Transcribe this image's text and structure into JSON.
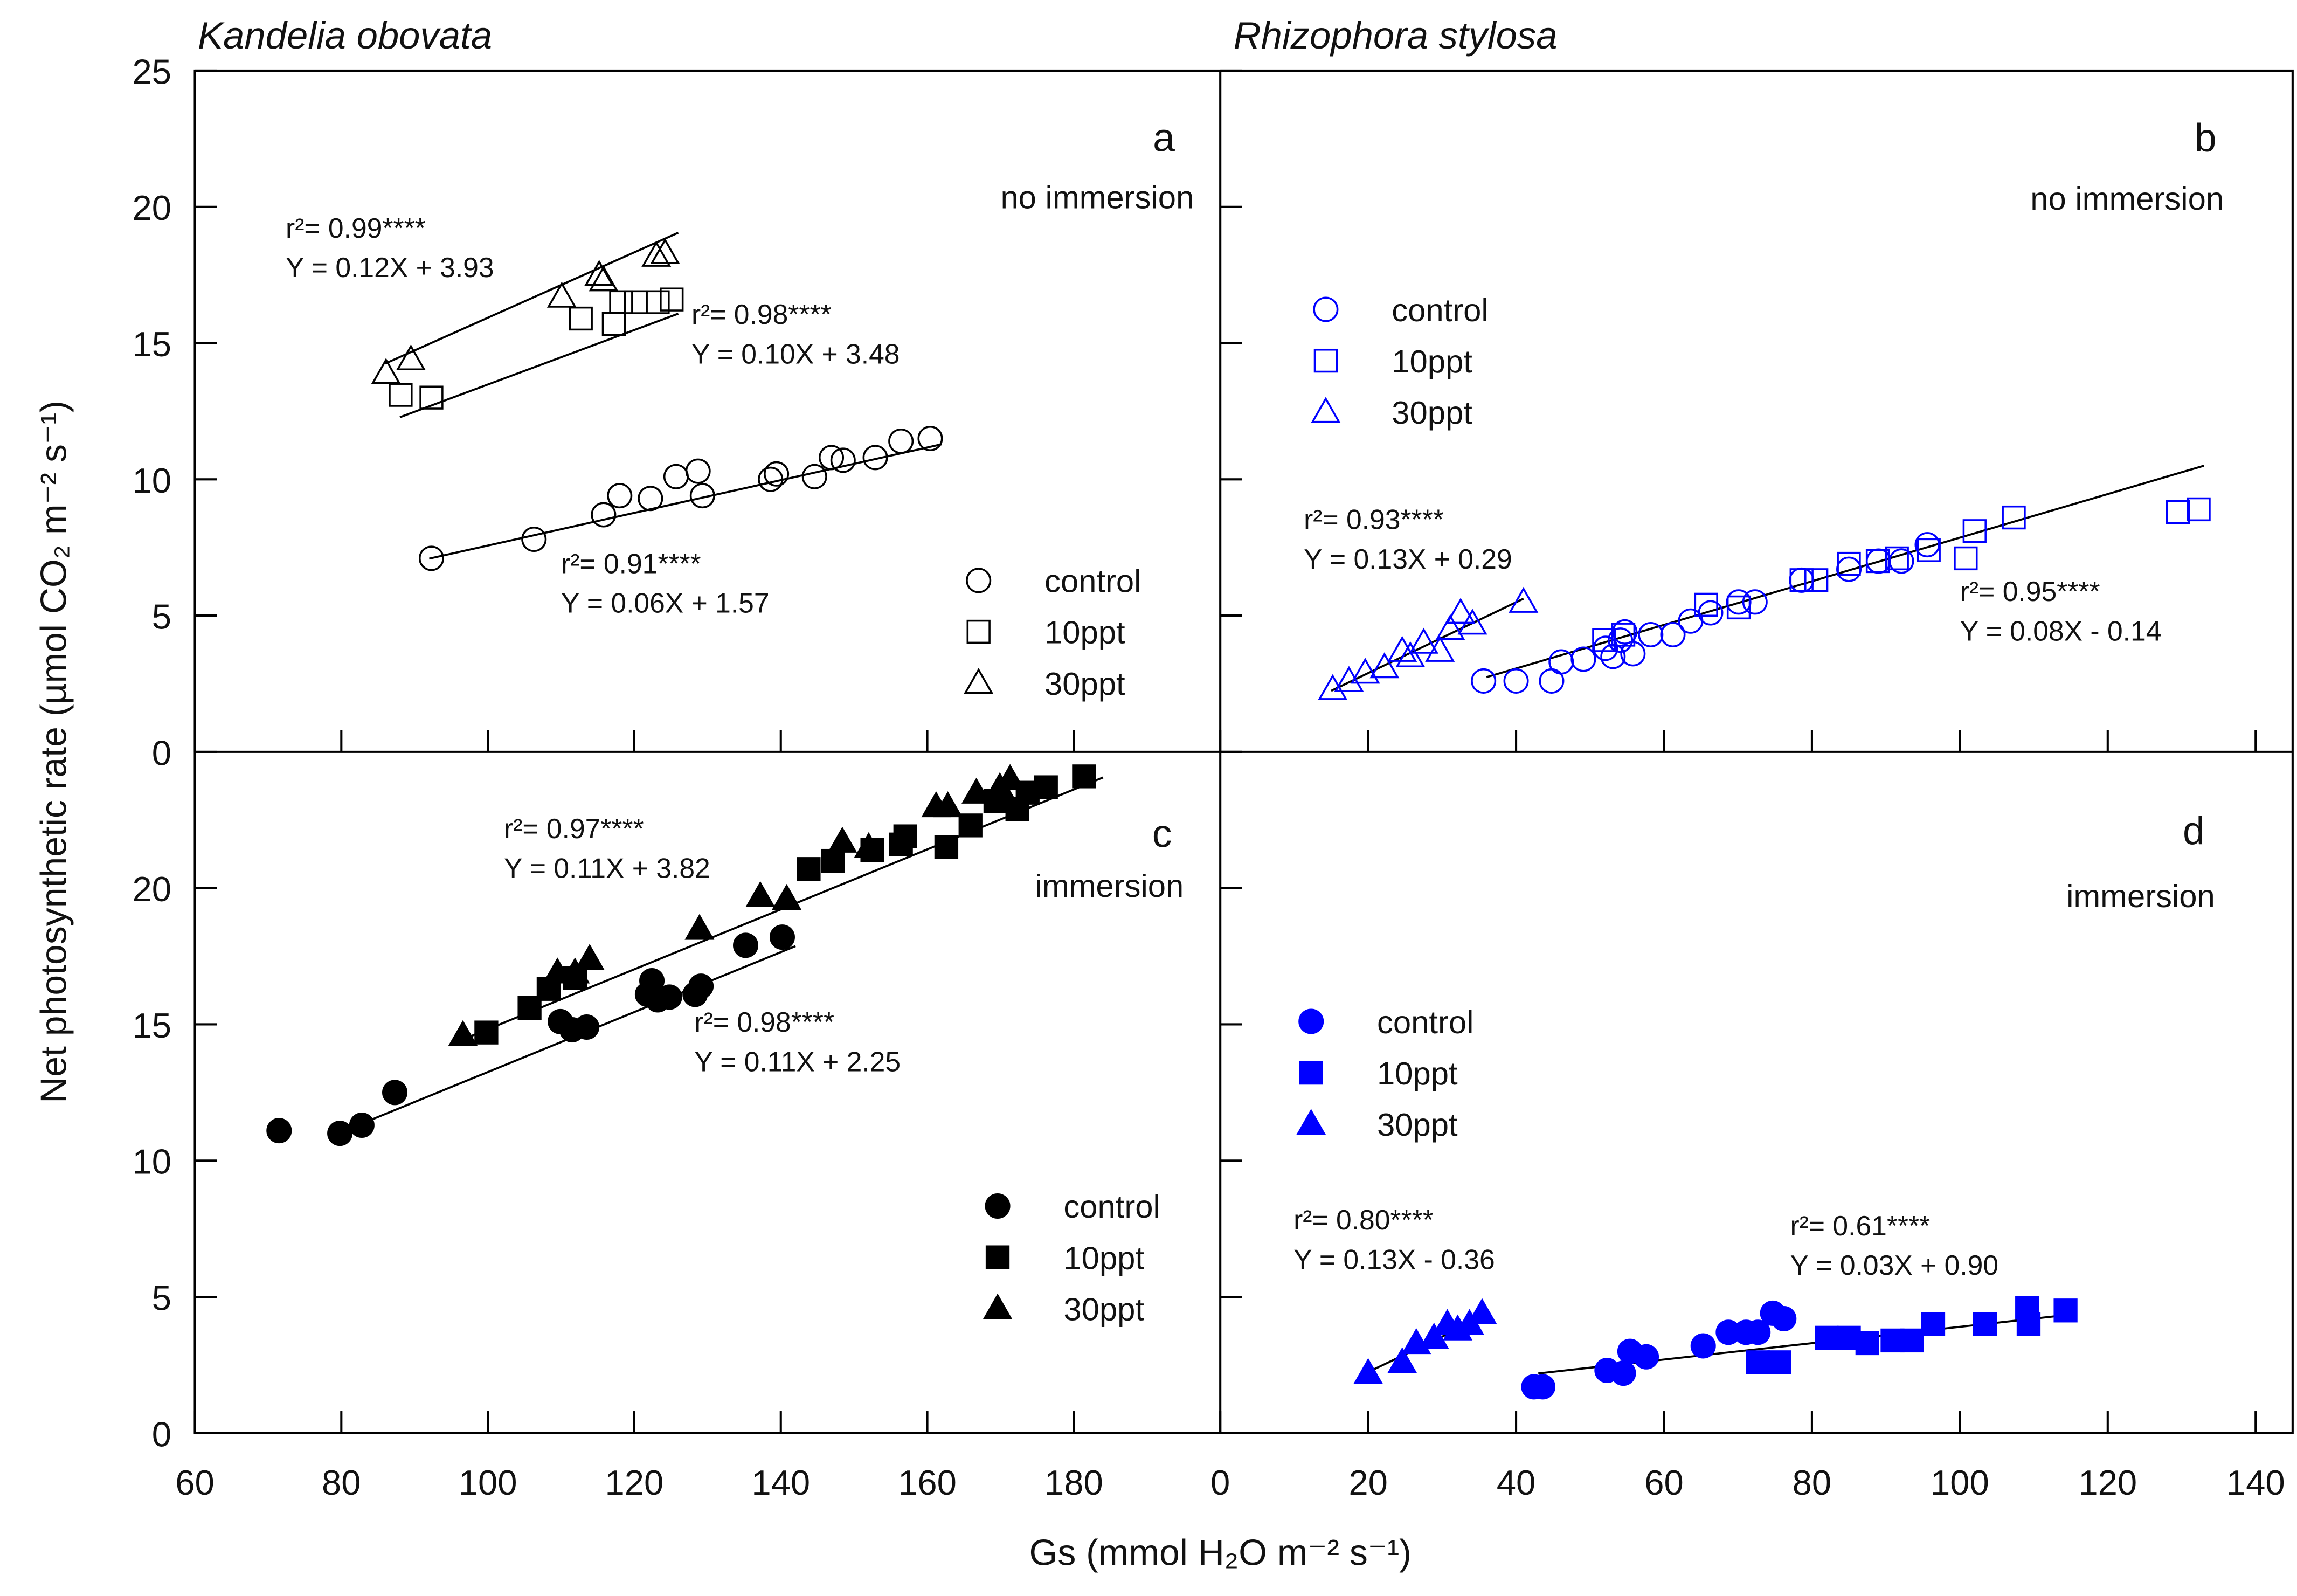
{
  "axis_labels": {
    "x": "Gs (mmol H₂O m⁻² s⁻¹)",
    "y": "Net photosynthetic rate (µmol CO₂ m⁻² s⁻¹)"
  },
  "chart_data": [
    {
      "type": "scatter",
      "title": "Kandelia obovata",
      "letter": "a",
      "subtitle": "no immersion",
      "xlim": [
        60,
        200
      ],
      "xticks": [
        60,
        80,
        100,
        120,
        140,
        160,
        180
      ],
      "ylim": [
        0,
        25
      ],
      "yticks": [
        0,
        5,
        10,
        15,
        20,
        25
      ],
      "show_xtick_labels": false,
      "show_ytick_labels": true,
      "series": [
        {
          "name": "control",
          "color": "#000000",
          "marker": "circle",
          "filled": false,
          "x": [
            92.3,
            106.3,
            115.8,
            118.0,
            122.2,
            125.7,
            128.7,
            129.3,
            138.6,
            139.4,
            144.6,
            146.9,
            148.5,
            152.9,
            156.4,
            160.4
          ],
          "values": [
            7.1,
            7.8,
            8.7,
            9.4,
            9.3,
            10.1,
            10.3,
            9.4,
            10.0,
            10.2,
            10.1,
            10.8,
            10.7,
            10.8,
            11.4,
            11.5
          ]
        },
        {
          "name": "10ppt",
          "color": "#000000",
          "marker": "square",
          "filled": false,
          "x": [
            88.1,
            92.3,
            112.7,
            117.2,
            118.2,
            120.2,
            123.2,
            125.1
          ],
          "values": [
            13.1,
            13.0,
            15.9,
            15.7,
            16.5,
            16.5,
            16.5,
            16.6
          ]
        },
        {
          "name": "30ppt",
          "color": "#000000",
          "marker": "triangle",
          "filled": false,
          "x": [
            86.1,
            89.5,
            110.1,
            115.2,
            115.8,
            123.0,
            124.2
          ],
          "values": [
            13.9,
            14.4,
            16.7,
            17.5,
            17.3,
            18.2,
            18.3
          ]
        }
      ],
      "fits": [
        {
          "r2_label": "r²= 0.99****",
          "equation": "Y = 0.12X + 3.93",
          "slope": 0.12,
          "intercept": 3.93,
          "xrange": [
            86,
            126
          ]
        },
        {
          "r2_label": "r²= 0.98****",
          "equation": "Y = 0.10X + 3.48",
          "slope": 0.1,
          "intercept": 3.48,
          "xrange": [
            88,
            126
          ]
        },
        {
          "r2_label": "r²= 0.91****",
          "equation": "Y = 0.06X + 1.57",
          "slope": 0.06,
          "intercept": 1.57,
          "xrange": [
            92,
            162
          ]
        }
      ]
    },
    {
      "type": "scatter",
      "title": "Rhizophora stylosa",
      "letter": "b",
      "subtitle": "no immersion",
      "xlim": [
        0,
        145
      ],
      "xticks": [
        0,
        20,
        40,
        60,
        80,
        100,
        120,
        140
      ],
      "ylim": [
        0,
        25
      ],
      "yticks": [
        0,
        5,
        10,
        15,
        20,
        25
      ],
      "show_xtick_labels": false,
      "show_ytick_labels": false,
      "series": [
        {
          "name": "control",
          "color": "#0000ff",
          "marker": "circle",
          "filled": false,
          "x": [
            35.6,
            40.0,
            44.8,
            46.1,
            49.1,
            52.1,
            53.1,
            54.1,
            54.7,
            55.8,
            58.2,
            61.2,
            63.6,
            66.3,
            70.1,
            72.3,
            78.6,
            85.0,
            89.0,
            92.1,
            95.6
          ],
          "values": [
            2.6,
            2.6,
            2.6,
            3.3,
            3.4,
            3.8,
            3.5,
            4.1,
            4.4,
            3.6,
            4.3,
            4.3,
            4.8,
            5.1,
            5.5,
            5.5,
            6.3,
            6.7,
            7.0,
            7.0,
            7.6
          ]
        },
        {
          "name": "10ppt",
          "color": "#0000ff",
          "marker": "square",
          "filled": false,
          "x": [
            51.9,
            54.5,
            65.7,
            70.1,
            78.6,
            80.6,
            85.0,
            88.9,
            91.5,
            95.8,
            100.8,
            102.0,
            107.3,
            129.5,
            132.3
          ],
          "values": [
            4.1,
            4.3,
            5.4,
            5.3,
            6.3,
            6.3,
            6.9,
            7.0,
            7.1,
            7.4,
            7.1,
            8.1,
            8.6,
            8.8,
            8.9
          ]
        },
        {
          "name": "30ppt",
          "color": "#0000ff",
          "marker": "triangle",
          "filled": false,
          "x": [
            15.2,
            17.4,
            19.6,
            22.2,
            24.6,
            25.7,
            27.5,
            29.7,
            31.1,
            32.5,
            34.1,
            41.0
          ],
          "values": [
            2.3,
            2.6,
            2.9,
            3.1,
            3.7,
            3.5,
            4.0,
            3.7,
            4.5,
            5.1,
            4.7,
            5.5
          ]
        }
      ],
      "fits": [
        {
          "r2_label": "r²= 0.93****",
          "equation": "Y = 0.13X + 0.29",
          "slope": 0.13,
          "intercept": 0.29,
          "xrange": [
            15,
            41
          ]
        },
        {
          "r2_label": "r²= 0.95****",
          "equation": "Y = 0.08X - 0.14",
          "slope": 0.08,
          "intercept": -0.14,
          "xrange": [
            36,
            133
          ]
        }
      ]
    },
    {
      "type": "scatter",
      "letter": "c",
      "subtitle": "immersion",
      "xlim": [
        60,
        200
      ],
      "xticks": [
        60,
        80,
        100,
        120,
        140,
        160,
        180
      ],
      "ylim": [
        0,
        25
      ],
      "yticks": [
        0,
        5,
        10,
        15,
        20
      ],
      "show_xtick_labels": true,
      "show_ytick_labels": true,
      "series": [
        {
          "name": "control",
          "color": "#000000",
          "marker": "circle",
          "filled": true,
          "x": [
            71.5,
            79.8,
            82.8,
            87.3,
            109.9,
            111.5,
            113.5,
            121.8,
            122.4,
            123.2,
            124.8,
            128.3,
            129.1,
            135.2,
            140.2
          ],
          "values": [
            11.1,
            11.0,
            11.3,
            12.5,
            15.1,
            14.8,
            14.9,
            16.1,
            16.6,
            15.9,
            16.0,
            16.1,
            16.4,
            17.9,
            18.2
          ]
        },
        {
          "name": "10ppt",
          "color": "#000000",
          "marker": "square",
          "filled": true,
          "x": [
            99.8,
            105.7,
            108.3,
            111.9,
            143.8,
            147.1,
            152.5,
            156.4,
            157.0,
            162.6,
            165.9,
            169.3,
            172.3,
            173.7,
            176.2,
            181.4
          ],
          "values": [
            14.7,
            15.6,
            16.3,
            16.7,
            20.7,
            21.0,
            21.4,
            21.6,
            21.9,
            21.5,
            22.3,
            23.2,
            22.9,
            23.5,
            23.7,
            24.1
          ]
        },
        {
          "name": "30ppt",
          "color": "#000000",
          "marker": "triangle",
          "filled": true,
          "x": [
            96.6,
            109.5,
            111.9,
            113.9,
            128.9,
            137.2,
            140.8,
            148.4,
            152.0,
            161.2,
            162.8,
            166.7,
            169.9,
            171.3
          ],
          "values": [
            14.6,
            16.9,
            16.9,
            17.4,
            18.5,
            19.7,
            19.6,
            21.7,
            21.5,
            23.0,
            23.0,
            23.5,
            23.7,
            24.0
          ]
        }
      ],
      "fits": [
        {
          "r2_label": "r²= 0.97****",
          "equation": "Y = 0.11X + 3.82",
          "slope": 0.11,
          "intercept": 3.82,
          "xrange": [
            96,
            184
          ]
        },
        {
          "r2_label": "r²= 0.98****",
          "equation": "Y = 0.11X + 2.25",
          "slope": 0.11,
          "intercept": 2.25,
          "xrange": [
            81,
            142
          ]
        }
      ]
    },
    {
      "type": "scatter",
      "letter": "d",
      "subtitle": "immersion",
      "xlim": [
        0,
        145
      ],
      "xticks": [
        0,
        20,
        40,
        60,
        80,
        100,
        120,
        140
      ],
      "ylim": [
        0,
        25
      ],
      "yticks": [
        0,
        5,
        10,
        15,
        20,
        25
      ],
      "show_xtick_labels": true,
      "show_ytick_labels": false,
      "series": [
        {
          "name": "control",
          "color": "#0000ff",
          "marker": "circle",
          "filled": true,
          "x": [
            42.4,
            43.6,
            52.3,
            54.5,
            55.4,
            57.6,
            65.3,
            68.7,
            71.1,
            72.7,
            74.7,
            76.2
          ],
          "values": [
            1.7,
            1.7,
            2.3,
            2.2,
            3.0,
            2.8,
            3.2,
            3.7,
            3.7,
            3.7,
            4.4,
            4.2
          ]
        },
        {
          "name": "10ppt",
          "color": "#0000ff",
          "marker": "square",
          "filled": true,
          "x": [
            72.7,
            75.6,
            82.0,
            85.0,
            87.5,
            90.9,
            93.5,
            96.4,
            103.4,
            109.3,
            109.1,
            114.3
          ],
          "values": [
            2.6,
            2.6,
            3.5,
            3.5,
            3.3,
            3.4,
            3.4,
            4.0,
            4.0,
            4.0,
            4.6,
            4.5
          ]
        },
        {
          "name": "30ppt",
          "color": "#0000ff",
          "marker": "triangle",
          "filled": true,
          "x": [
            20.0,
            24.6,
            26.5,
            28.9,
            30.7,
            32.1,
            33.7,
            35.4
          ],
          "values": [
            2.2,
            2.6,
            3.3,
            3.5,
            4.0,
            3.8,
            4.0,
            4.4
          ]
        }
      ],
      "fits": [
        {
          "r2_label": "r²= 0.80****",
          "equation": "Y = 0.13X - 0.36",
          "slope": 0.13,
          "intercept": -0.36,
          "xrange": [
            20,
            36
          ]
        },
        {
          "r2_label": "r²= 0.61****",
          "equation": "Y = 0.03X + 0.90",
          "slope": 0.03,
          "intercept": 0.9,
          "xrange": [
            43,
            115
          ]
        }
      ]
    }
  ]
}
